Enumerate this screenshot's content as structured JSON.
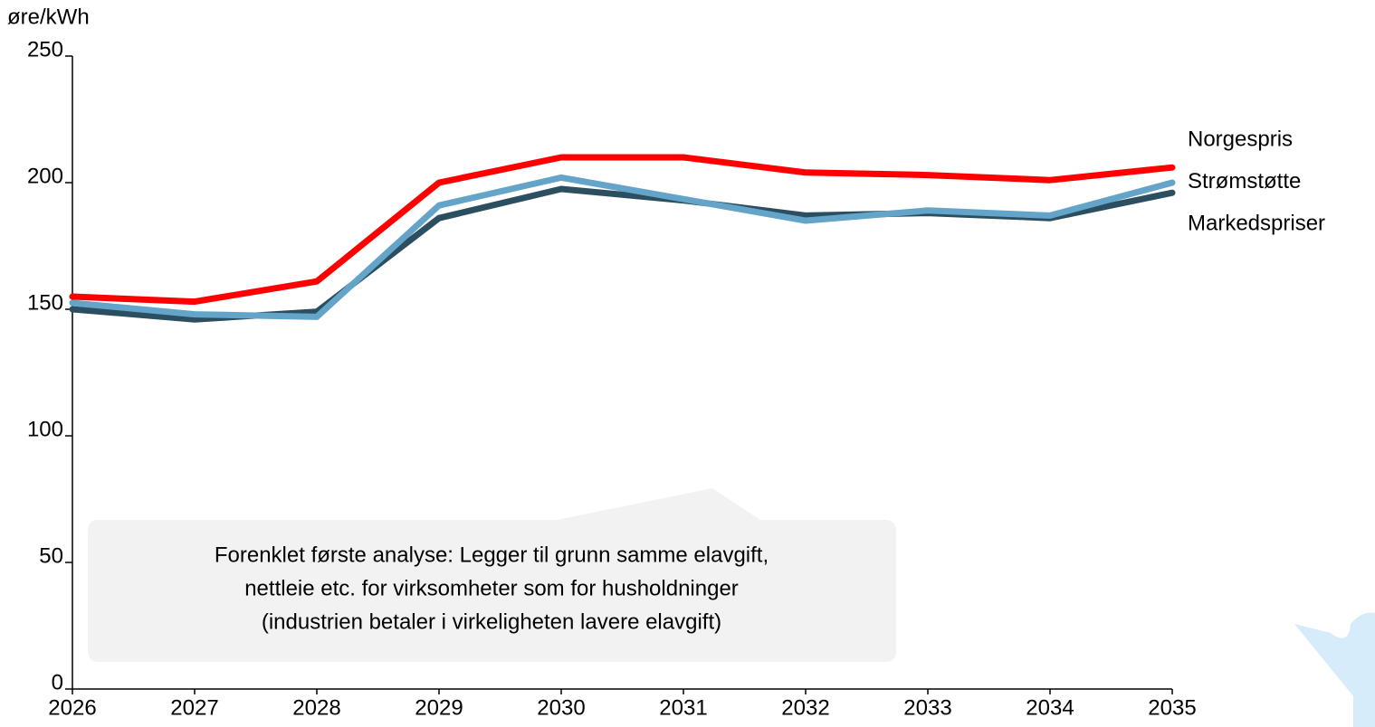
{
  "chart_data": {
    "type": "line",
    "y_axis_label": "øre/kWh",
    "x": [
      2026,
      2027,
      2028,
      2029,
      2030,
      2031,
      2032,
      2033,
      2034,
      2035
    ],
    "xlim": [
      2026,
      2035
    ],
    "xticks": [
      2026,
      2027,
      2028,
      2029,
      2030,
      2031,
      2032,
      2033,
      2034,
      2035
    ],
    "ylim": [
      0,
      250
    ],
    "yticks": [
      0,
      50,
      100,
      150,
      200,
      250
    ],
    "grid": false,
    "series": [
      {
        "name": "Norgespris",
        "color": "#ff0000",
        "values": [
          155,
          153,
          161,
          200,
          210,
          210,
          204,
          203,
          201,
          206
        ]
      },
      {
        "name": "Strømstøtte",
        "color": "#63a4c8",
        "values": [
          152.5,
          148,
          147,
          191,
          202,
          193.5,
          185,
          189,
          187,
          200
        ]
      },
      {
        "name": "Markedspriser",
        "color": "#2b4e60",
        "values": [
          150,
          146,
          149,
          186,
          197.5,
          193,
          187,
          188,
          186,
          196
        ]
      }
    ],
    "annotation": [
      "Forenklet første analyse: Legger til grunn samme elavgift,",
      "nettleie etc. for virksomheter som for husholdninger",
      "(industrien betaler i virkeligheten lavere elavgift)"
    ]
  }
}
